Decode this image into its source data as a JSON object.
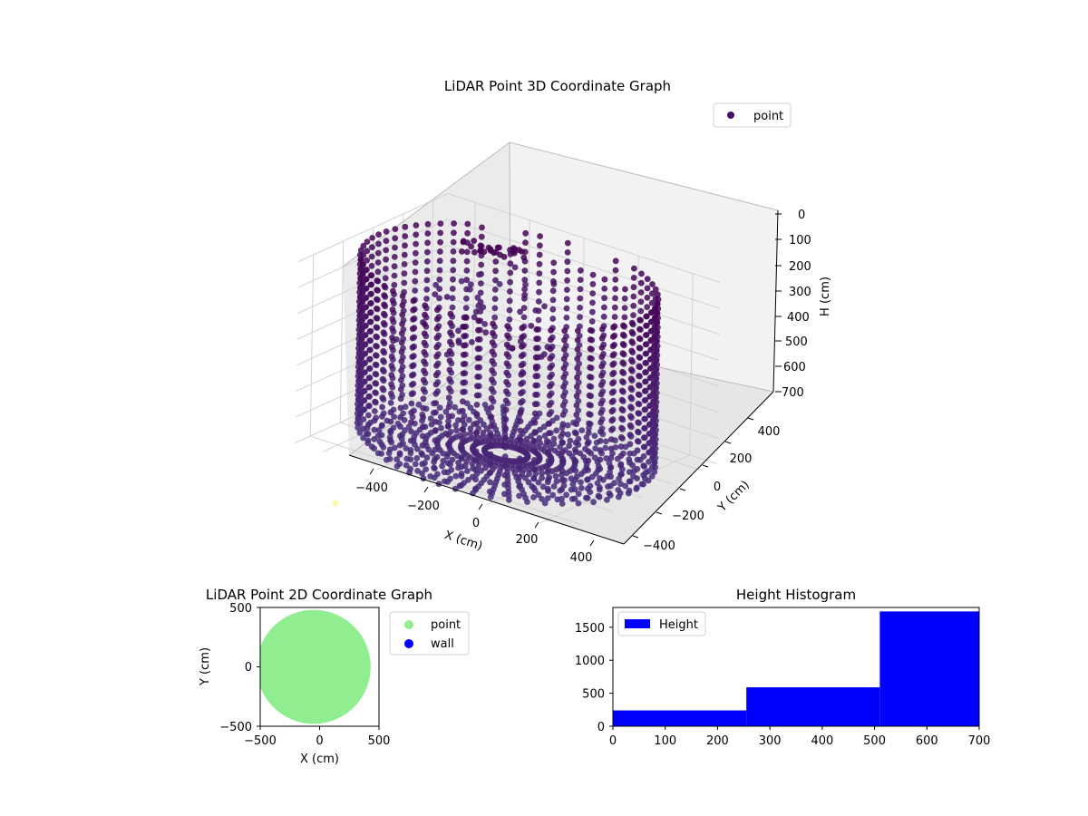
{
  "chart_data": [
    {
      "type": "scatter",
      "title": "LiDAR Point 3D Coordinate Graph",
      "xlabel": "X (cm)",
      "ylabel": "Y (cm)",
      "zlabel": "H (cm)",
      "xticks": [
        "−400",
        "−200",
        "0",
        "200",
        "400"
      ],
      "yticks": [
        "−400",
        "−200",
        "0",
        "200",
        "400"
      ],
      "zticks": [
        "0",
        "100",
        "200",
        "300",
        "400",
        "500",
        "600",
        "700"
      ],
      "zlim": [
        0,
        700
      ],
      "z_axis_inverted": true,
      "grid": true,
      "legend": {
        "placement": "upper-right",
        "entries": [
          "point"
        ]
      },
      "series": [
        {
          "name": "point",
          "shape": "cylinder wall plus radial floor",
          "wall_radius": 480,
          "height_range": [
            0,
            700
          ],
          "colormap": "viridis",
          "colormap_range": [
            0,
            0.45
          ]
        }
      ]
    },
    {
      "type": "scatter",
      "title": "LiDAR Point 2D Coordinate Graph",
      "xlabel": "X (cm)",
      "ylabel": "Y (cm)",
      "xlim": [
        -500,
        500
      ],
      "ylim": [
        -500,
        500
      ],
      "xticks": [
        "−500",
        "0",
        "500"
      ],
      "yticks": [
        "−500",
        "0",
        "500"
      ],
      "legend": {
        "placement": "outside-right",
        "entries": [
          "point",
          "wall"
        ]
      },
      "series": [
        {
          "name": "point",
          "color": "#90ee90",
          "shape": "filled disc",
          "radius": 480
        },
        {
          "name": "wall",
          "color": "#0000ff",
          "count": 0
        }
      ]
    },
    {
      "type": "bar",
      "title": "Height Histogram",
      "xlim": [
        0,
        700
      ],
      "ylim": [
        0,
        1800
      ],
      "xticks": [
        "0",
        "100",
        "200",
        "300",
        "400",
        "500",
        "600",
        "700"
      ],
      "yticks": [
        "0",
        "500",
        "1000",
        "1500"
      ],
      "legend": {
        "placement": "upper-left",
        "entries": [
          "Height"
        ]
      },
      "series": [
        {
          "name": "Height",
          "color": "#0000ff",
          "bin_edges": [
            0,
            255,
            510,
            700
          ],
          "values": [
            240,
            590,
            1740
          ]
        }
      ]
    }
  ]
}
